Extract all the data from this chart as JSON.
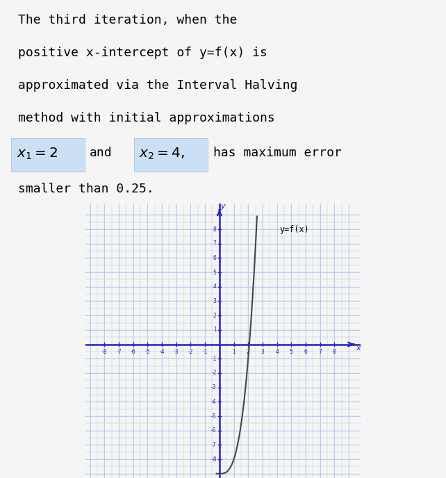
{
  "text_lines": [
    "The third iteration, when the",
    "positive x-intercept of y=f(x) is",
    "approximated via the Interval Halving",
    "method with initial approximations"
  ],
  "text_line2": "smaller than 0.25.",
  "func_label": "y=f(x)",
  "axis_color": "#2222cc",
  "grid_color": "#b8cce8",
  "curve_color": "#444444",
  "background_color": "#eef2fb",
  "highlight_color": "#cce0f5",
  "font_family": "monospace",
  "text_fontsize": 13.0,
  "math_fontsize": 14.5,
  "fig_bg": "#f5f5f5",
  "graph_xlim": [
    -9,
    9
  ],
  "graph_ylim": [
    -9,
    9
  ],
  "graph_xticks": [
    -8,
    -7,
    -6,
    -5,
    -4,
    -3,
    -2,
    -1,
    1,
    2,
    3,
    4,
    5,
    6,
    7,
    8
  ],
  "graph_yticks": [
    -8,
    -7,
    -6,
    -5,
    -4,
    -3,
    -2,
    -1,
    1,
    2,
    3,
    4,
    5,
    6,
    7,
    8
  ]
}
